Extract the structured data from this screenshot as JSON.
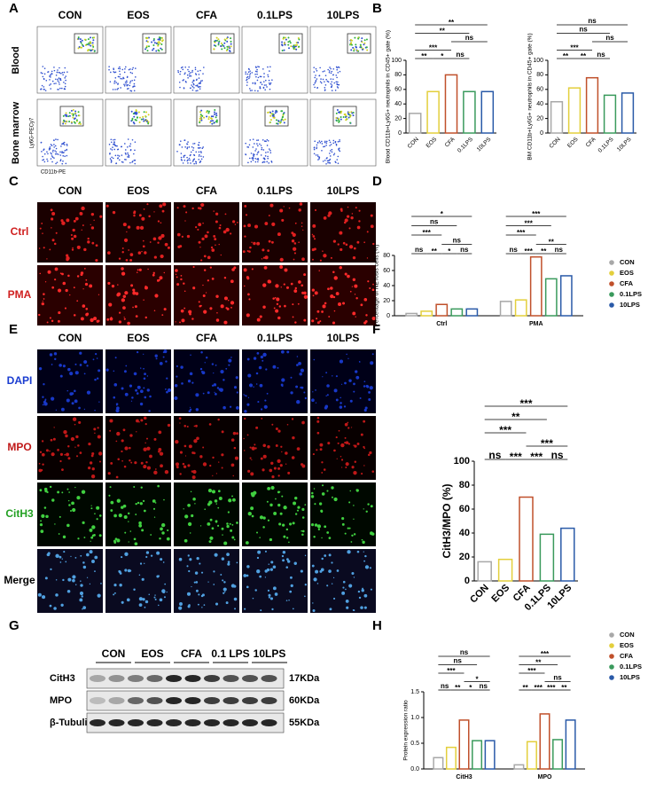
{
  "panels": [
    "A",
    "B",
    "C",
    "D",
    "E",
    "F",
    "G",
    "H"
  ],
  "flow": {
    "columns": [
      "CON",
      "EOS",
      "CFA",
      "0.1LPS",
      "10LPS"
    ],
    "rows": [
      "Blood",
      "Bone marrow"
    ],
    "y_axis_label": "Ly6G-PECy7",
    "x_axis_label": "CD11b-PE"
  },
  "netosis_images": {
    "columns": [
      "CON",
      "EOS",
      "CFA",
      "0.1LPS",
      "10LPS"
    ],
    "rows": [
      "Ctrl",
      "PMA"
    ]
  },
  "staining_images": {
    "columns": [
      "CON",
      "EOS",
      "CFA",
      "0.1LPS",
      "10LPS"
    ],
    "rows": [
      "DAPI",
      "MPO",
      "CitH3",
      "Merge"
    ]
  },
  "blot": {
    "columns": [
      "CON",
      "EOS",
      "CFA",
      "0.1 LPS",
      "10LPS"
    ],
    "rows": [
      {
        "name": "CitH3",
        "size": "17KDa"
      },
      {
        "name": "MPO",
        "size": "60KDa"
      },
      {
        "name": "β-Tubulin",
        "size": "55KDa"
      }
    ]
  },
  "chart_data": [
    {
      "type": "bar",
      "ylabel": "Blood CD11b+Ly6G+ neutrophils in CD45+ gate (%)",
      "categories": [
        "CON",
        "EOS",
        "CFA",
        "0.1LPS",
        "10LPS"
      ],
      "values": [
        27,
        57,
        80,
        57,
        57
      ],
      "colors": [
        "#a8a8a8",
        "#e3cf3c",
        "#c0502b",
        "#3a9a5c",
        "#2a5aa8"
      ],
      "ylim": [
        0,
        100
      ],
      "yticks": [
        0,
        20,
        40,
        60,
        80,
        100
      ],
      "brackets": [
        {
          "from": 0,
          "to": 1,
          "label": "**"
        },
        {
          "from": 1,
          "to": 2,
          "label": "*"
        },
        {
          "from": 0,
          "to": 2,
          "label": "***"
        },
        {
          "from": 2,
          "to": 3,
          "label": "ns"
        },
        {
          "from": 2,
          "to": 4,
          "label": "ns"
        },
        {
          "from": 0,
          "to": 3,
          "label": "**"
        },
        {
          "from": 0,
          "to": 4,
          "label": "**"
        }
      ]
    },
    {
      "type": "bar",
      "ylabel": "BM CD11b+Ly6G+ neutrophils in CD45+ gate (%)",
      "categories": [
        "CON",
        "EOS",
        "CFA",
        "0.1LPS",
        "10LPS"
      ],
      "values": [
        43,
        62,
        76,
        52,
        55
      ],
      "colors": [
        "#a8a8a8",
        "#e3cf3c",
        "#c0502b",
        "#3a9a5c",
        "#2a5aa8"
      ],
      "ylim": [
        0,
        100
      ],
      "yticks": [
        0,
        20,
        40,
        60,
        80,
        100
      ],
      "brackets": [
        {
          "from": 0,
          "to": 1,
          "label": "**"
        },
        {
          "from": 1,
          "to": 2,
          "label": "**"
        },
        {
          "from": 0,
          "to": 2,
          "label": "***"
        },
        {
          "from": 2,
          "to": 3,
          "label": "ns"
        },
        {
          "from": 2,
          "to": 4,
          "label": "ns"
        },
        {
          "from": 0,
          "to": 3,
          "label": "ns"
        },
        {
          "from": 0,
          "to": 4,
          "label": "ns"
        }
      ]
    },
    {
      "type": "grouped_bar",
      "ylabel": "Percentage of NETosis cells (%)",
      "categories": [
        "Ctrl",
        "PMA"
      ],
      "series": [
        {
          "name": "CON",
          "color": "#a8a8a8",
          "values": [
            3,
            19
          ]
        },
        {
          "name": "EOS",
          "color": "#e3cf3c",
          "values": [
            6,
            21
          ]
        },
        {
          "name": "CFA",
          "color": "#c0502b",
          "values": [
            15,
            78
          ]
        },
        {
          "name": "0.1LPS",
          "color": "#3a9a5c",
          "values": [
            9,
            49
          ]
        },
        {
          "name": "10LPS",
          "color": "#2a5aa8",
          "values": [
            9,
            53
          ]
        }
      ],
      "ylim": [
        0,
        80
      ],
      "yticks": [
        0,
        20,
        40,
        60,
        80
      ],
      "brackets": [
        {
          "group": 0,
          "from": 0,
          "to": 1,
          "label": "ns"
        },
        {
          "group": 0,
          "from": 1,
          "to": 2,
          "label": "**"
        },
        {
          "group": 0,
          "from": 2,
          "to": 3,
          "label": "*"
        },
        {
          "group": 0,
          "from": 3,
          "to": 4,
          "label": "ns"
        },
        {
          "group": 0,
          "from": 2,
          "to": 4,
          "label": "ns"
        },
        {
          "group": 0,
          "from": 0,
          "to": 2,
          "label": "***"
        },
        {
          "group": 0,
          "from": 0,
          "to": 3,
          "label": "ns"
        },
        {
          "group": 0,
          "from": 0,
          "to": 4,
          "label": "*"
        },
        {
          "group": 1,
          "from": 0,
          "to": 1,
          "label": "ns"
        },
        {
          "group": 1,
          "from": 1,
          "to": 2,
          "label": "***"
        },
        {
          "group": 1,
          "from": 2,
          "to": 3,
          "label": "**"
        },
        {
          "group": 1,
          "from": 3,
          "to": 4,
          "label": "ns"
        },
        {
          "group": 1,
          "from": 2,
          "to": 4,
          "label": "**"
        },
        {
          "group": 1,
          "from": 0,
          "to": 2,
          "label": "***"
        },
        {
          "group": 1,
          "from": 0,
          "to": 3,
          "label": "***"
        },
        {
          "group": 1,
          "from": 0,
          "to": 4,
          "label": "***"
        }
      ]
    },
    {
      "type": "bar",
      "ylabel": "CitH3/MPO (%)",
      "categories": [
        "CON",
        "EOS",
        "CFA",
        "0.1LPS",
        "10LPS"
      ],
      "values": [
        16,
        18,
        70,
        39,
        44
      ],
      "colors": [
        "#a8a8a8",
        "#e3cf3c",
        "#c0502b",
        "#3a9a5c",
        "#2a5aa8"
      ],
      "ylim": [
        0,
        100
      ],
      "yticks": [
        0,
        20,
        40,
        60,
        80,
        100
      ],
      "brackets": [
        {
          "from": 0,
          "to": 1,
          "label": "ns"
        },
        {
          "from": 1,
          "to": 2,
          "label": "***"
        },
        {
          "from": 2,
          "to": 3,
          "label": "***"
        },
        {
          "from": 3,
          "to": 4,
          "label": "ns"
        },
        {
          "from": 2,
          "to": 4,
          "label": "***"
        },
        {
          "from": 0,
          "to": 2,
          "label": "***"
        },
        {
          "from": 0,
          "to": 3,
          "label": "**"
        },
        {
          "from": 0,
          "to": 4,
          "label": "***"
        }
      ]
    },
    {
      "type": "grouped_bar",
      "ylabel": "Protein expression ratio",
      "categories": [
        "CitH3",
        "MPO"
      ],
      "series": [
        {
          "name": "CON",
          "color": "#a8a8a8",
          "values": [
            0.22,
            0.08
          ]
        },
        {
          "name": "EOS",
          "color": "#e3cf3c",
          "values": [
            0.42,
            0.53
          ]
        },
        {
          "name": "CFA",
          "color": "#c0502b",
          "values": [
            0.95,
            1.07
          ]
        },
        {
          "name": "0.1LPS",
          "color": "#3a9a5c",
          "values": [
            0.55,
            0.57
          ]
        },
        {
          "name": "10LPS",
          "color": "#2a5aa8",
          "values": [
            0.55,
            0.95
          ]
        }
      ],
      "ylim": [
        0,
        1.5
      ],
      "yticks": [
        {
          "value": 0,
          "label": "0.0"
        },
        0.5,
        {
          "value": 1,
          "label": "1.0"
        },
        1.5
      ],
      "brackets": [
        {
          "group": 0,
          "from": 0,
          "to": 1,
          "label": "ns"
        },
        {
          "group": 0,
          "from": 1,
          "to": 2,
          "label": "**"
        },
        {
          "group": 0,
          "from": 2,
          "to": 3,
          "label": "*"
        },
        {
          "group": 0,
          "from": 3,
          "to": 4,
          "label": "ns"
        },
        {
          "group": 0,
          "from": 2,
          "to": 4,
          "label": "*"
        },
        {
          "group": 0,
          "from": 0,
          "to": 2,
          "label": "***"
        },
        {
          "group": 0,
          "from": 0,
          "to": 3,
          "label": "ns"
        },
        {
          "group": 0,
          "from": 0,
          "to": 4,
          "label": "ns"
        },
        {
          "group": 1,
          "from": 0,
          "to": 1,
          "label": "**"
        },
        {
          "group": 1,
          "from": 1,
          "to": 2,
          "label": "***"
        },
        {
          "group": 1,
          "from": 2,
          "to": 3,
          "label": "***"
        },
        {
          "group": 1,
          "from": 3,
          "to": 4,
          "label": "**"
        },
        {
          "group": 1,
          "from": 2,
          "to": 4,
          "label": "ns"
        },
        {
          "group": 1,
          "from": 0,
          "to": 2,
          "label": "***"
        },
        {
          "group": 1,
          "from": 0,
          "to": 3,
          "label": "**"
        },
        {
          "group": 1,
          "from": 0,
          "to": 4,
          "label": "***"
        }
      ]
    }
  ]
}
